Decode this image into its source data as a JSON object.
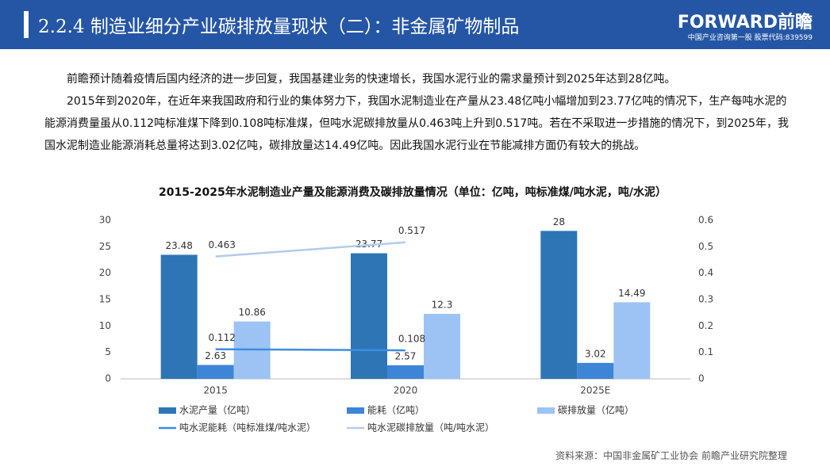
{
  "header": {
    "title": "2.2.4 制造业细分产业碳排放量现状（二）：非金属矿物制品",
    "logo": "FORWARD前瞻",
    "logo_sub": "中国产业咨询第一股 股票代码:839599"
  },
  "paragraphs": [
    "前瞻预计随着疫情后国内经济的进一步回复，我国基建业务的快速增长，我国水泥行业的需求量预计到2025年达到28亿吨。",
    "2015年到2020年，在近年来我国政府和行业的集体努力下，我国水泥制造业在产量从23.48亿吨小幅增加到23.77亿吨的情况下，生产每吨水泥的能源消费量虽从0.112吨标准煤下降到0.108吨标准煤，但吨水泥碳排放量从0.463吨上升到0.517吨。若在不采取进一步措施的情况下，到2025年，我国水泥制造业能源消耗总量将达到3.02亿吨，碳排放量达14.49亿吨。因此我国水泥行业在节能减排方面仍有较大的挑战。"
  ],
  "chart_data": {
    "type": "bar",
    "title": "2015-2025年水泥制造业产量及能源消费及碳排放量情况（单位：亿吨，吨标准煤/吨水泥，吨/水泥）",
    "categories": [
      "2015",
      "2020",
      "2025E"
    ],
    "series": [
      {
        "name": "水泥产量（亿吨）",
        "color": "#2e75b6",
        "values": [
          23.48,
          23.77,
          28
        ]
      },
      {
        "name": "能耗（亿吨）",
        "color": "#3d85d6",
        "values": [
          2.63,
          2.57,
          3.02
        ]
      },
      {
        "name": "碳排放量（亿吨）",
        "color": "#9dc3f5",
        "values": [
          10.86,
          12.3,
          14.49
        ]
      },
      {
        "name": "吨水泥能耗（吨标准煤/吨水泥）",
        "type": "line",
        "axis": "y2",
        "color": "#3c8ee0",
        "values": [
          0.112,
          0.108,
          null
        ]
      },
      {
        "name": "吨水泥碳排放量（吨/吨水泥）",
        "type": "line",
        "axis": "y2",
        "color": "#b4cbeb",
        "values": [
          0.463,
          0.517,
          null
        ]
      }
    ],
    "ylim": [
      0,
      30
    ],
    "yticks": [
      0,
      5,
      10,
      15,
      20,
      25,
      30
    ],
    "y2lim": [
      0,
      0.6
    ],
    "y2ticks": [
      0,
      0.1,
      0.2,
      0.3,
      0.4,
      0.5,
      0.6
    ],
    "grid": false
  },
  "source": "资料来源：中国非金属矿工业协会 前瞻产业研究院整理"
}
